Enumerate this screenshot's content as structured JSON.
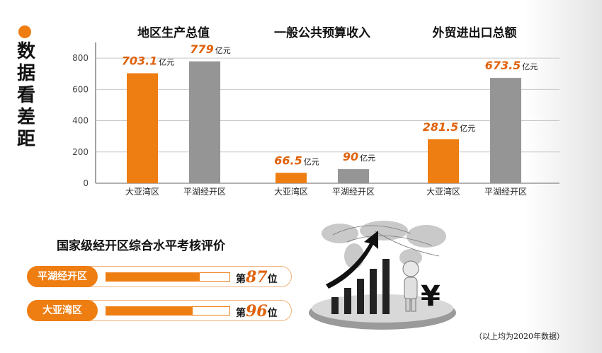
{
  "side_title": [
    "数",
    "据",
    "看",
    "差",
    "距"
  ],
  "chart_data": [
    {
      "type": "bar",
      "title": "地区生产总值",
      "categories": [
        "大亚湾区",
        "平湖经开区"
      ],
      "values": [
        703.1,
        779
      ],
      "value_labels": [
        "703.1",
        "779"
      ],
      "unit": "亿元",
      "ylim": [
        0,
        900
      ],
      "yticks": [
        0,
        200,
        400,
        600,
        800
      ],
      "grid": true,
      "colors": [
        "#ee7d12",
        "#959595"
      ]
    },
    {
      "type": "bar",
      "title": "一般公共预算收入",
      "categories": [
        "大亚湾区",
        "平湖经开区"
      ],
      "values": [
        66.5,
        90
      ],
      "value_labels": [
        "66.5",
        "90"
      ],
      "unit": "亿元",
      "ylim": [
        0,
        900
      ],
      "grid": true,
      "colors": [
        "#ee7d12",
        "#959595"
      ]
    },
    {
      "type": "bar",
      "title": "外贸进出口总额",
      "categories": [
        "大亚湾区",
        "平湖经开区"
      ],
      "values": [
        281.5,
        673.5
      ],
      "value_labels": [
        "281.5",
        "673.5"
      ],
      "unit": "亿元",
      "ylim": [
        0,
        900
      ],
      "grid": true,
      "colors": [
        "#ee7d12",
        "#959595"
      ]
    }
  ],
  "evaluation": {
    "title": "国家级经开区综合水平考核评价",
    "rows": [
      {
        "name": "平湖经开区",
        "rank_prefix": "第",
        "rank": "87",
        "rank_suffix": "位",
        "fill": 0.76
      },
      {
        "name": "大亚湾区",
        "rank_prefix": "第",
        "rank": "96",
        "rank_suffix": "位",
        "fill": 0.7
      }
    ]
  },
  "footnote": "（以上均为2020年数据）",
  "colors": {
    "accent": "#ee7d12",
    "gray_bar": "#959595",
    "value_label": "#e0620c"
  }
}
